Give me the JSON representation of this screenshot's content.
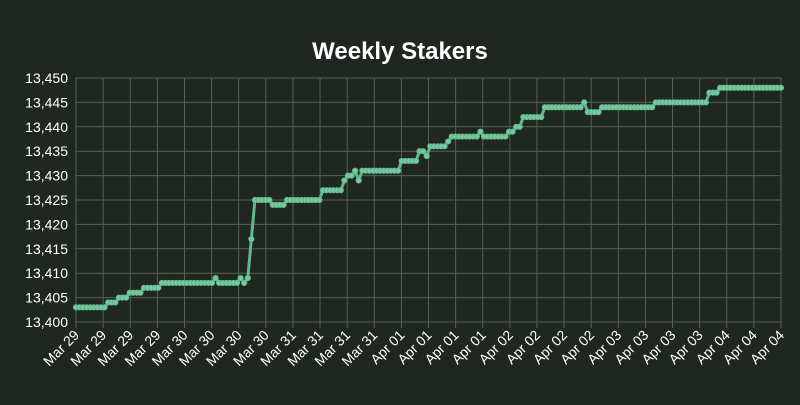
{
  "chart_data": {
    "type": "line",
    "title": "Weekly Stakers",
    "xlabel": "",
    "ylabel": "",
    "ylim": [
      13400,
      13450
    ],
    "yticks": [
      13400,
      13405,
      13410,
      13415,
      13420,
      13425,
      13430,
      13435,
      13440,
      13445,
      13450
    ],
    "ytick_labels": [
      "13,400",
      "13,405",
      "13,410",
      "13,415",
      "13,420",
      "13,425",
      "13,430",
      "13,435",
      "13,440",
      "13,445",
      "13,450"
    ],
    "xtick_labels": [
      "Mar 29",
      "Mar 29",
      "Mar 29",
      "Mar 29",
      "Mar 30",
      "Mar 30",
      "Mar 30",
      "Mar 30",
      "Mar 31",
      "Mar 31",
      "Mar 31",
      "Mar 31",
      "Apr 01",
      "Apr 01",
      "Apr 01",
      "Apr 01",
      "Apr 02",
      "Apr 02",
      "Apr 02",
      "Apr 02",
      "Apr 03",
      "Apr 03",
      "Apr 03",
      "Apr 03",
      "Apr 04",
      "Apr 04",
      "Apr 04"
    ],
    "grid": true,
    "colors": {
      "line": "#5fb98f",
      "marker_fill": "#76c9a0",
      "grid": "#55605a",
      "background": "#1f2720",
      "text": "#ffffff"
    },
    "series": [
      {
        "values": [
          13403,
          13403,
          13403,
          13403,
          13403,
          13403,
          13403,
          13403,
          13403,
          13404,
          13404,
          13404,
          13405,
          13405,
          13405,
          13406,
          13406,
          13406,
          13406,
          13407,
          13407,
          13407,
          13407,
          13407,
          13408,
          13408,
          13408,
          13408,
          13408,
          13408,
          13408,
          13408,
          13408,
          13408,
          13408,
          13408,
          13408,
          13408,
          13408,
          13409,
          13408,
          13408,
          13408,
          13408,
          13408,
          13408,
          13409,
          13408,
          13409,
          13417,
          13425,
          13425,
          13425,
          13425,
          13425,
          13424,
          13424,
          13424,
          13424,
          13425,
          13425,
          13425,
          13425,
          13425,
          13425,
          13425,
          13425,
          13425,
          13425,
          13427,
          13427,
          13427,
          13427,
          13427,
          13427,
          13429,
          13430,
          13430,
          13431,
          13429,
          13431,
          13431,
          13431,
          13431,
          13431,
          13431,
          13431,
          13431,
          13431,
          13431,
          13431,
          13433,
          13433,
          13433,
          13433,
          13433,
          13435,
          13435,
          13434,
          13436,
          13436,
          13436,
          13436,
          13436,
          13437,
          13438,
          13438,
          13438,
          13438,
          13438,
          13438,
          13438,
          13438,
          13439,
          13438,
          13438,
          13438,
          13438,
          13438,
          13438,
          13438,
          13439,
          13439,
          13440,
          13440,
          13442,
          13442,
          13442,
          13442,
          13442,
          13442,
          13444,
          13444,
          13444,
          13444,
          13444,
          13444,
          13444,
          13444,
          13444,
          13444,
          13444,
          13445,
          13443,
          13443,
          13443,
          13443,
          13444,
          13444,
          13444,
          13444,
          13444,
          13444,
          13444,
          13444,
          13444,
          13444,
          13444,
          13444,
          13444,
          13444,
          13444,
          13445,
          13445,
          13445,
          13445,
          13445,
          13445,
          13445,
          13445,
          13445,
          13445,
          13445,
          13445,
          13445,
          13445,
          13445,
          13447,
          13447,
          13447,
          13448,
          13448,
          13448,
          13448,
          13448,
          13448,
          13448,
          13448,
          13448,
          13448,
          13448,
          13448,
          13448,
          13448,
          13448,
          13448,
          13448,
          13448
        ]
      }
    ]
  }
}
